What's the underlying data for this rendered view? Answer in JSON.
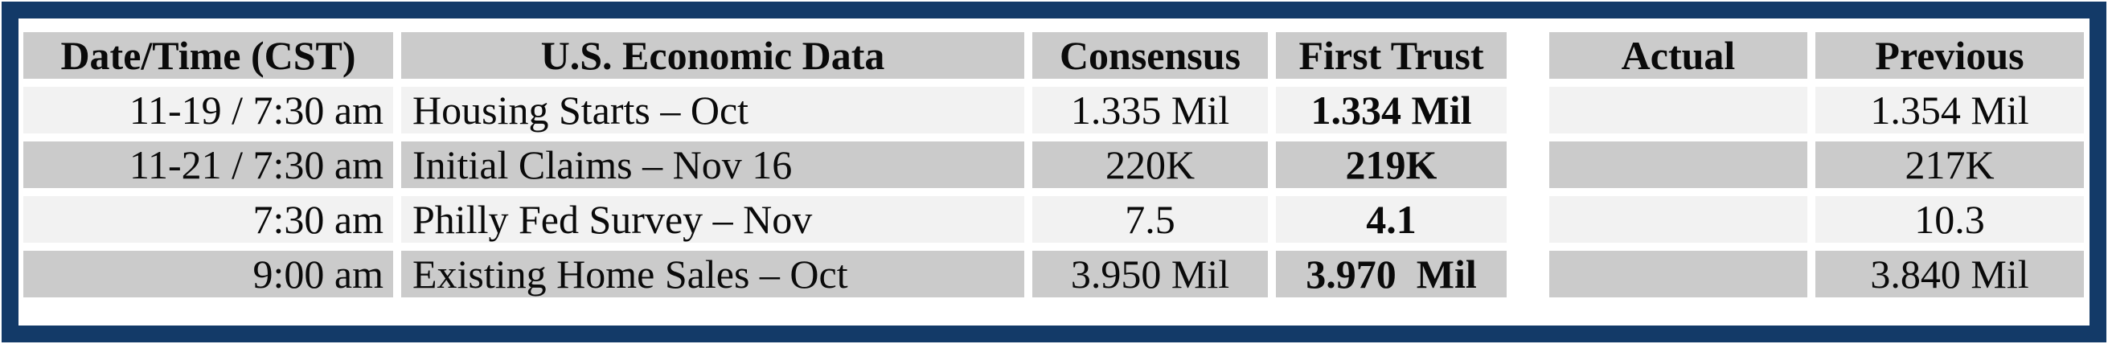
{
  "colors": {
    "frame_navy": "#133A68",
    "header_gray": "#CBCBCB",
    "row_dark_gray": "#CBCBCB",
    "row_light_gray": "#F2F2F2",
    "text": "#0A0A0A"
  },
  "table": {
    "headers": {
      "datetime": "Date/Time (CST)",
      "event": "U.S. Economic Data",
      "consensus": "Consensus",
      "first_trust": "First Trust",
      "actual": "Actual",
      "previous": "Previous"
    },
    "rows": [
      {
        "datetime": "11-19 / 7:30 am",
        "event": "Housing Starts – Oct",
        "consensus": "1.335 Mil",
        "first_trust": "1.334 Mil",
        "actual": "",
        "previous": "1.354 Mil"
      },
      {
        "datetime": "11-21 / 7:30 am",
        "event": "Initial Claims – Nov 16",
        "consensus": "220K",
        "first_trust": "219K",
        "actual": "",
        "previous": "217K"
      },
      {
        "datetime": "7:30 am",
        "event": "Philly Fed Survey – Nov",
        "consensus": "7.5",
        "first_trust": "4.1",
        "actual": "",
        "previous": "10.3"
      },
      {
        "datetime": "9:00 am",
        "event": "Existing Home Sales – Oct",
        "consensus": "3.950 Mil",
        "first_trust": "3.970  Mil",
        "actual": "",
        "previous": "3.840 Mil"
      }
    ]
  }
}
